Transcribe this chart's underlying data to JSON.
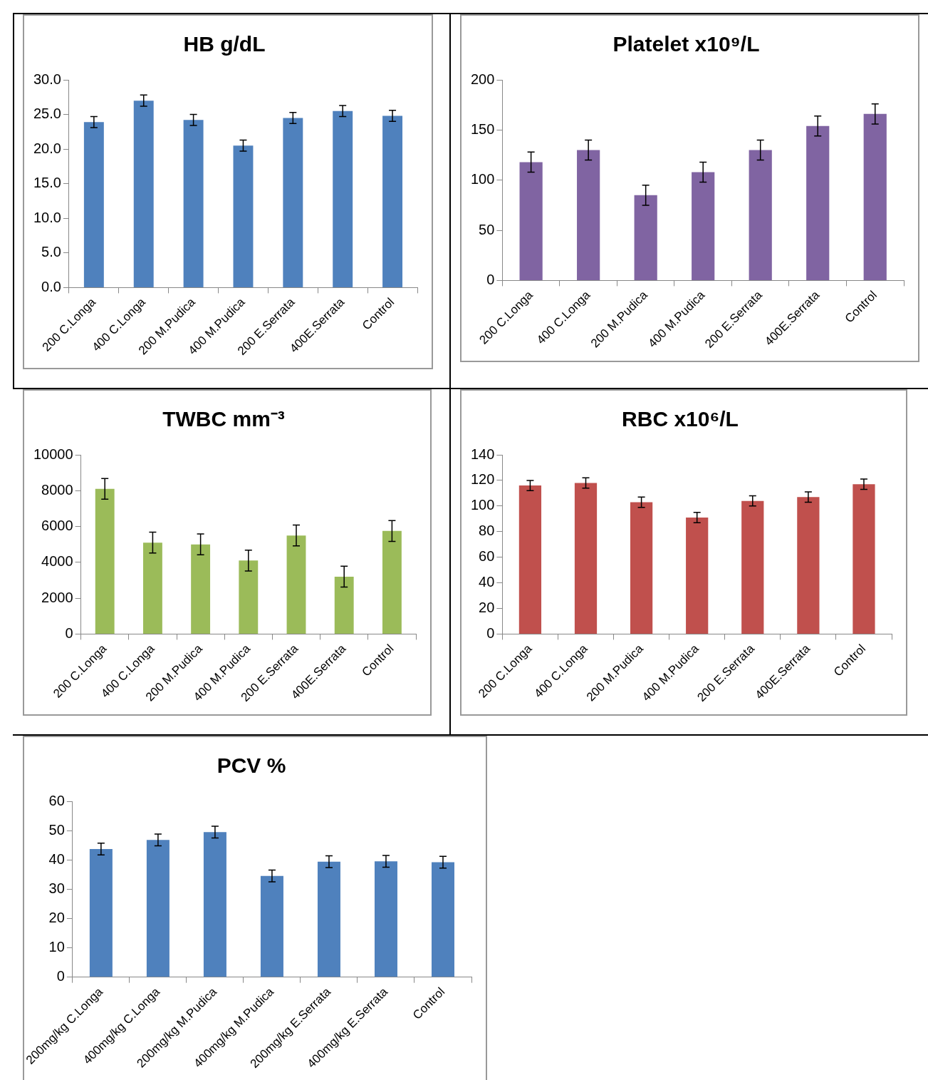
{
  "chart_data": [
    {
      "type": "bar",
      "title": "HB g/dL",
      "categories": [
        "200 C.Longa",
        "400 C.Longa",
        "200 M.Pudica",
        "400 M.Pudica",
        "200 E.Serrata",
        "400E.Serrata",
        "Control"
      ],
      "values": [
        23.9,
        27.0,
        24.2,
        20.5,
        24.5,
        25.5,
        24.8
      ],
      "errors": [
        0.8,
        0.8,
        0.8,
        0.8,
        0.8,
        0.8,
        0.8
      ],
      "color": "#4f81bd",
      "ylim": [
        0,
        30
      ],
      "yticks": [
        {
          "value": 0,
          "label": "0.0"
        },
        {
          "value": 5,
          "label": "5.0"
        },
        {
          "value": 10,
          "label": "10.0"
        },
        {
          "value": 15,
          "label": "15.0"
        },
        {
          "value": 20,
          "label": "20.0"
        },
        {
          "value": 25,
          "label": "25.0"
        },
        {
          "value": 30,
          "label": "30.0"
        }
      ],
      "grid": false,
      "legend": false
    },
    {
      "type": "bar",
      "title": "Platelet x10⁹/L",
      "categories": [
        "200 C.Longa",
        "400 C.Longa",
        "200 M.Pudica",
        "400 M.Pudica",
        "200 E.Serrata",
        "400E.Serrata",
        "Control"
      ],
      "values": [
        118,
        130,
        85,
        108,
        130,
        154,
        166
      ],
      "errors": [
        10,
        10,
        10,
        10,
        10,
        10,
        10
      ],
      "color": "#8064a2",
      "ylim": [
        0,
        200
      ],
      "yticks": [
        0,
        50,
        100,
        150,
        200
      ],
      "grid": false,
      "legend": false
    },
    {
      "type": "bar",
      "title": "TWBC mm⁻³",
      "categories": [
        "200 C.Longa",
        "400 C.Longa",
        "200 M.Pudica",
        "400 M.Pudica",
        "200 E.Serrata",
        "400E.Serrata",
        "Control"
      ],
      "values": [
        8100,
        5100,
        5000,
        4100,
        5500,
        3200,
        5750
      ],
      "errors": [
        580,
        580,
        580,
        580,
        580,
        580,
        580
      ],
      "color": "#9bbb59",
      "ylim": [
        0,
        10000
      ],
      "yticks": [
        0,
        2000,
        4000,
        6000,
        8000,
        10000
      ],
      "grid": false,
      "legend": false
    },
    {
      "type": "bar",
      "title": "RBC x10⁶/L",
      "categories": [
        "200 C.Longa",
        "400 C.Longa",
        "200 M.Pudica",
        "400 M.Pudica",
        "200 E.Serrata",
        "400E.Serrata",
        "Control"
      ],
      "values": [
        116,
        118,
        103,
        91,
        104,
        107,
        117
      ],
      "errors": [
        4,
        4,
        4,
        4,
        4,
        4,
        4
      ],
      "color": "#c0504d",
      "ylim": [
        0,
        140
      ],
      "yticks": [
        0,
        20,
        40,
        60,
        80,
        100,
        120,
        140
      ],
      "grid": false,
      "legend": false
    },
    {
      "type": "bar",
      "title": "PCV %",
      "categories": [
        "200mg/kg C.Longa",
        "400mg/kg C.Longa",
        "200mg/kg M.Pudica",
        "400mg/kg M.Pudica",
        "200mg/kg E.Serrata",
        "400mg/kg E.Serrata",
        "Control"
      ],
      "values": [
        43.7,
        46.8,
        49.5,
        34.5,
        39.4,
        39.5,
        39.2
      ],
      "errors": [
        2,
        2,
        2,
        2,
        2,
        2,
        2
      ],
      "color": "#4f81bd",
      "ylim": [
        0,
        60
      ],
      "yticks": [
        0,
        10,
        20,
        30,
        40,
        50,
        60
      ],
      "grid": false,
      "legend": false
    }
  ]
}
